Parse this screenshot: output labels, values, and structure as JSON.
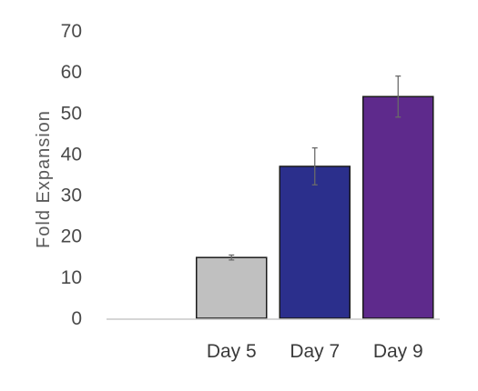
{
  "chart_data": {
    "type": "bar",
    "title": "",
    "xlabel": "",
    "ylabel": "Fold Expansion",
    "categories": [
      "",
      "Day 5",
      "Day 7",
      "Day 9"
    ],
    "values": [
      null,
      14.8,
      37,
      54
    ],
    "errors": [
      null,
      0.6,
      4.5,
      5
    ],
    "colors": [
      "#ffffff",
      "#c0c0c0",
      "#2b2f8c",
      "#5e2a8c"
    ],
    "ylim": [
      0,
      70
    ],
    "yticks": [
      0,
      10,
      20,
      30,
      40,
      50,
      60,
      70
    ],
    "grid": false,
    "legend": "none"
  }
}
